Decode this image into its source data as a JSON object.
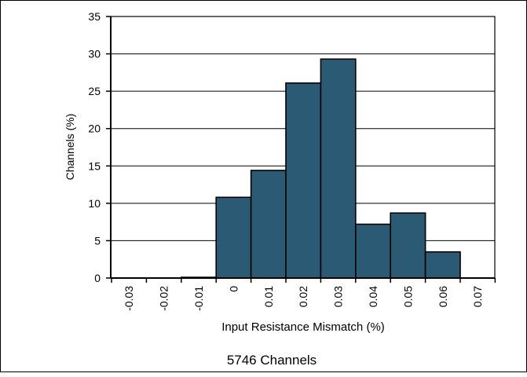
{
  "chart_data": {
    "type": "bar",
    "categories": [
      "-0.03",
      "-0.02",
      "-0.01",
      "0",
      "0.01",
      "0.02",
      "0.03",
      "0.04",
      "0.05",
      "0.06",
      "0.07"
    ],
    "values": [
      0,
      0,
      0.1,
      10.8,
      14.4,
      26.1,
      29.3,
      7.2,
      8.7,
      3.5,
      0
    ],
    "xlabel": "Input Resistance Mismatch (%)",
    "ylabel": "Channels (%)",
    "ylim": [
      0,
      35
    ],
    "yticks": [
      0,
      5,
      10,
      15,
      20,
      25,
      30,
      35
    ],
    "grid": true,
    "bar_color": "#2B5A74",
    "annotation": "5746 Channels"
  }
}
